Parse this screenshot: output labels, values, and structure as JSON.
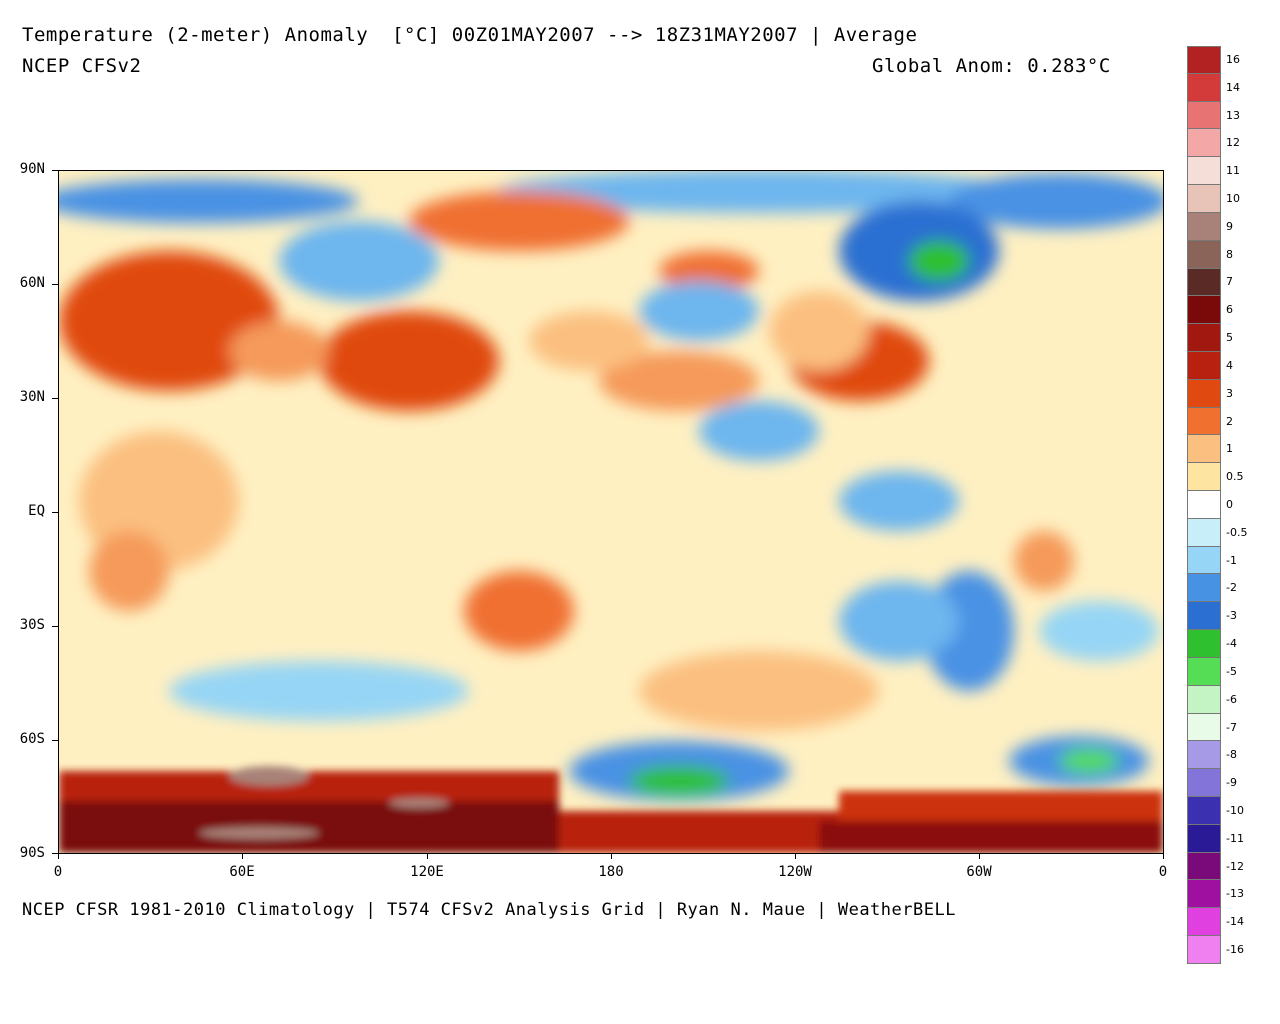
{
  "header": {
    "title": "Temperature (2-meter) Anomaly  [°C] 00Z01MAY2007 --> 18Z31MAY2007 | Average",
    "model": "NCEP CFSv2",
    "global_anomaly": "Global Anom: 0.283°C"
  },
  "footer": "NCEP CFSR 1981-2010 Climatology | T574 CFSv2 Analysis Grid | Ryan N. Maue | WeatherBELL",
  "axes": {
    "lat_labels": [
      "90N",
      "60N",
      "30N",
      "EQ",
      "30S",
      "60S",
      "90S"
    ],
    "lon_labels": [
      "0",
      "60E",
      "120E",
      "180",
      "120W",
      "60W",
      "0"
    ]
  },
  "colorbar": {
    "labels": [
      "16",
      "14",
      "13",
      "12",
      "11",
      "10",
      "9",
      "8",
      "7",
      "6",
      "5",
      "4",
      "3",
      "2",
      "1",
      "0.5",
      "0",
      "-0.5",
      "-1",
      "-2",
      "-3",
      "-4",
      "-5",
      "-6",
      "-7",
      "-8",
      "-9",
      "-10",
      "-11",
      "-12",
      "-13",
      "-14",
      "-16"
    ],
    "colors": [
      "#b22222",
      "#d33b3b",
      "#e05050",
      "#e87373",
      "#f4a7a7",
      "#fcdcdc",
      "#f6ded8",
      "#e8c4b8",
      "#cfa599",
      "#a88278",
      "#8a6359",
      "#6b453d",
      "#5a2a26",
      "#7a0a0a",
      "#8b1010",
      "#a01810",
      "#b82010",
      "#cc3010",
      "#e04a10",
      "#f07030",
      "#f59a5a",
      "#fbc080",
      "#fde4a0",
      "#fff6c8",
      "#ffffff",
      "#c8eefa",
      "#96d5f5",
      "#6db6ee",
      "#4892e4",
      "#2c6fd2",
      "#1f9a1f",
      "#2fc02f",
      "#55dd55",
      "#8fea8f",
      "#c4f4c4",
      "#e8fbe8",
      "#c8c0f0",
      "#a69ae6",
      "#8274d8",
      "#5a4cc6",
      "#3a30b0",
      "#2a1a96",
      "#4a0a5a",
      "#7a0a7a",
      "#a010a0",
      "#c820c8",
      "#e040e0",
      "#f080f0"
    ]
  }
}
